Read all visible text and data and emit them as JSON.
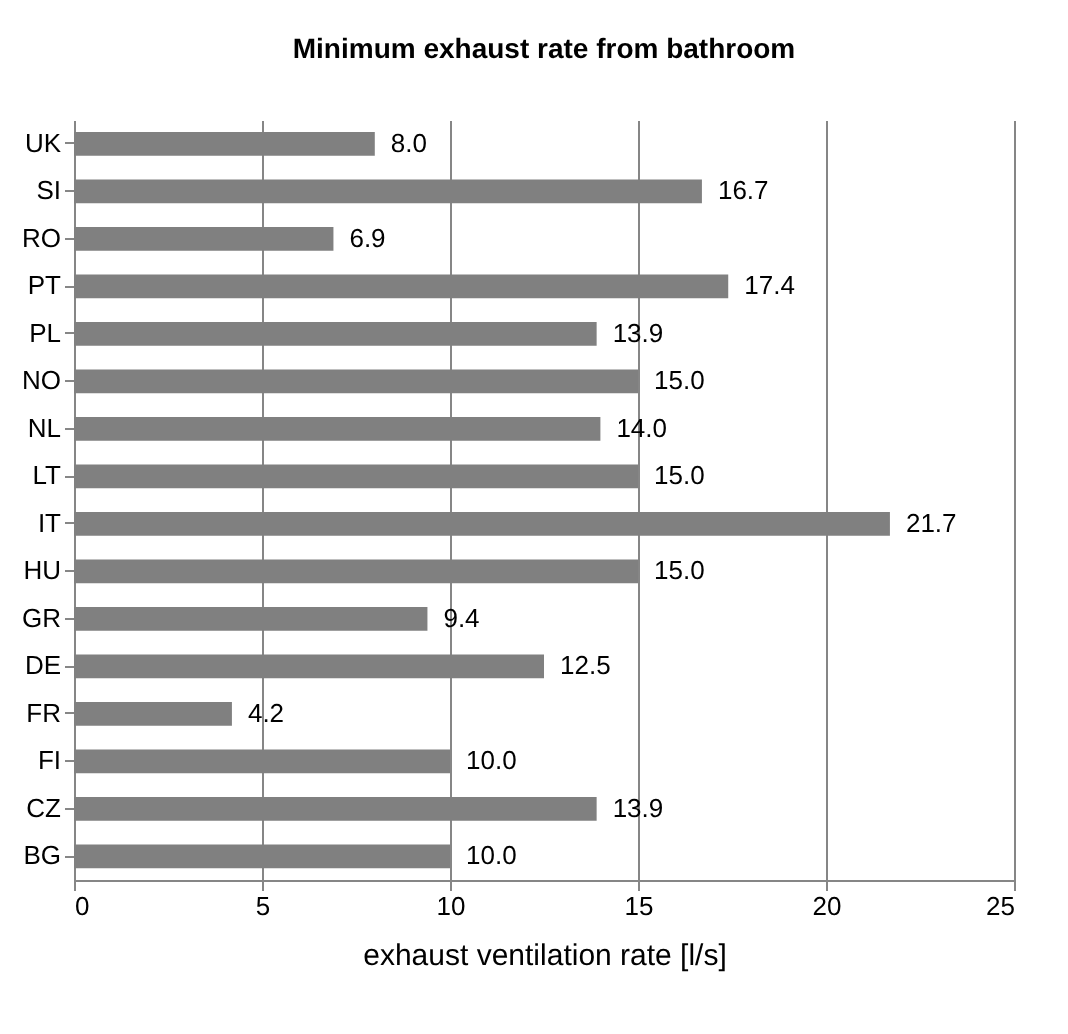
{
  "chart_data": {
    "type": "bar",
    "orientation": "horizontal",
    "title": "Minimum exhaust rate from bathroom",
    "xlabel": "exhaust ventilation rate [l/s]",
    "categories": [
      "UK",
      "SI",
      "RO",
      "PT",
      "PL",
      "NO",
      "NL",
      "LT",
      "IT",
      "HU",
      "GR",
      "DE",
      "FR",
      "FI",
      "CZ",
      "BG"
    ],
    "values": [
      8.0,
      16.7,
      6.9,
      17.4,
      13.9,
      15.0,
      14.0,
      15.0,
      21.7,
      15.0,
      9.4,
      12.5,
      4.2,
      10.0,
      13.9,
      10.0
    ],
    "value_labels": [
      "8.0",
      "16.7",
      "6.9",
      "17.4",
      "13.9",
      "15.0",
      "14.0",
      "15.0",
      "21.7",
      "15.0",
      "9.4",
      "12.5",
      "4.2",
      "10.0",
      "13.9",
      "10.0"
    ],
    "color": "#808080",
    "xlim": [
      0,
      25
    ],
    "xticks": [
      0,
      5,
      10,
      15,
      20,
      25
    ],
    "grid": "x"
  }
}
